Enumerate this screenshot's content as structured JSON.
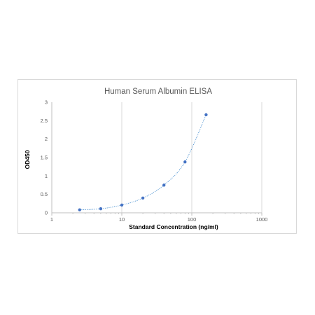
{
  "chart_data": {
    "type": "scatter",
    "title": "Human Serum Albumin ELISA",
    "xlabel": "Standard Concentration (ng/ml)",
    "ylabel": "OD450",
    "x_scale": "log",
    "xlim": [
      1,
      1000
    ],
    "ylim": [
      0,
      3
    ],
    "x_ticks": [
      1,
      10,
      100,
      1000
    ],
    "x_tick_labels": [
      "1",
      "10",
      "100",
      "1000"
    ],
    "y_ticks": [
      0,
      0.5,
      1,
      1.5,
      2,
      2.5,
      3
    ],
    "y_tick_labels": [
      "0",
      "0.5",
      "1",
      "1.5",
      "2",
      "2.5",
      "3"
    ],
    "grid": "vertical gridlines",
    "legend": "none",
    "series": [
      {
        "x": [
          2.5,
          5,
          10,
          20,
          40,
          80,
          160
        ],
        "y": [
          0.08,
          0.11,
          0.21,
          0.4,
          0.75,
          1.38,
          2.66
        ],
        "marker_color": "#4472c4",
        "trendline": "dotted",
        "trendline_color": "#5b9bd5"
      }
    ]
  }
}
